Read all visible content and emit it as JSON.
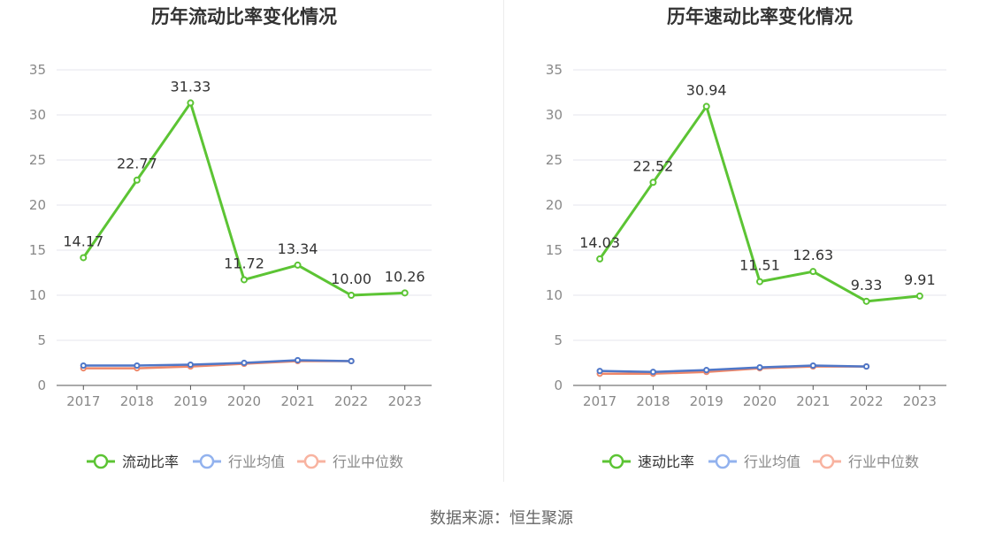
{
  "source_text": "数据来源：恒生聚源",
  "colors": {
    "primary": "#5cc434",
    "industry_avg": "#4f77c8",
    "industry_median": "#ee8769",
    "legend_avg": "#92b2ee",
    "legend_median": "#f8b3a0",
    "grid": "#e4e6ec",
    "axis": "#555555",
    "tick_text": "#888888",
    "label_text": "#333333",
    "title_text": "#333333"
  },
  "chart_data": [
    {
      "type": "line",
      "title": "历年流动比率变化情况",
      "categories": [
        "2017",
        "2018",
        "2019",
        "2020",
        "2021",
        "2022",
        "2023"
      ],
      "ylim": [
        0,
        35
      ],
      "yticks": [
        0,
        5,
        10,
        15,
        20,
        25,
        30,
        35
      ],
      "grid": true,
      "legend_position": "bottom",
      "series": [
        {
          "name": "流动比率",
          "values": [
            14.17,
            22.77,
            31.33,
            11.72,
            13.34,
            10.0,
            10.26
          ],
          "labels": [
            "14.17",
            "22.77",
            "31.33",
            "11.72",
            "13.34",
            "10.00",
            "10.26"
          ]
        },
        {
          "name": "行业均值",
          "values": [
            2.2,
            2.2,
            2.3,
            2.5,
            2.8,
            2.7,
            null
          ]
        },
        {
          "name": "行业中位数",
          "values": [
            1.9,
            1.9,
            2.1,
            2.4,
            2.7,
            2.7,
            null
          ]
        }
      ]
    },
    {
      "type": "line",
      "title": "历年速动比率变化情况",
      "categories": [
        "2017",
        "2018",
        "2019",
        "2020",
        "2021",
        "2022",
        "2023"
      ],
      "ylim": [
        0,
        35
      ],
      "yticks": [
        0,
        5,
        10,
        15,
        20,
        25,
        30,
        35
      ],
      "grid": true,
      "legend_position": "bottom",
      "series": [
        {
          "name": "速动比率",
          "values": [
            14.03,
            22.52,
            30.94,
            11.51,
            12.63,
            9.33,
            9.91
          ],
          "labels": [
            "14.03",
            "22.52",
            "30.94",
            "11.51",
            "12.63",
            "9.33",
            "9.91"
          ]
        },
        {
          "name": "行业均值",
          "values": [
            1.6,
            1.5,
            1.7,
            2.0,
            2.2,
            2.1,
            null
          ]
        },
        {
          "name": "行业中位数",
          "values": [
            1.3,
            1.3,
            1.5,
            1.9,
            2.1,
            2.1,
            null
          ]
        }
      ]
    }
  ]
}
